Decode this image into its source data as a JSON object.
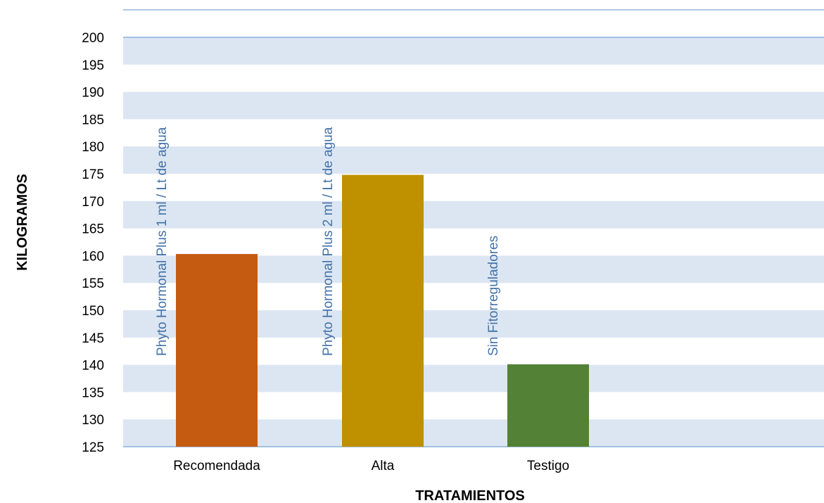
{
  "chart_data": {
    "type": "bar",
    "categories": [
      "Recomendada",
      "Alta",
      "Testigo"
    ],
    "values": [
      160.3,
      174.8,
      140.1
    ],
    "annotations": [
      "Phyto Hormonal Plus 1 ml / Lt de agua",
      "Phyto Hormonal Plus 2 ml / Lt de agua",
      "Sin Fitorreguladores"
    ],
    "xlabel": "TRATAMIENTOS",
    "ylabel": "KILOGRAMOS",
    "ylim": [
      125,
      200
    ],
    "yticks": [
      125,
      130,
      135,
      140,
      145,
      150,
      155,
      160,
      165,
      170,
      175,
      180,
      185,
      190,
      195,
      200
    ],
    "grid": "horizontal-bands",
    "bar_colors": [
      "#c55a11",
      "#bf9000",
      "#538135"
    ],
    "band_color": "#dce6f2",
    "gridline_color": "#5b8fd0"
  }
}
